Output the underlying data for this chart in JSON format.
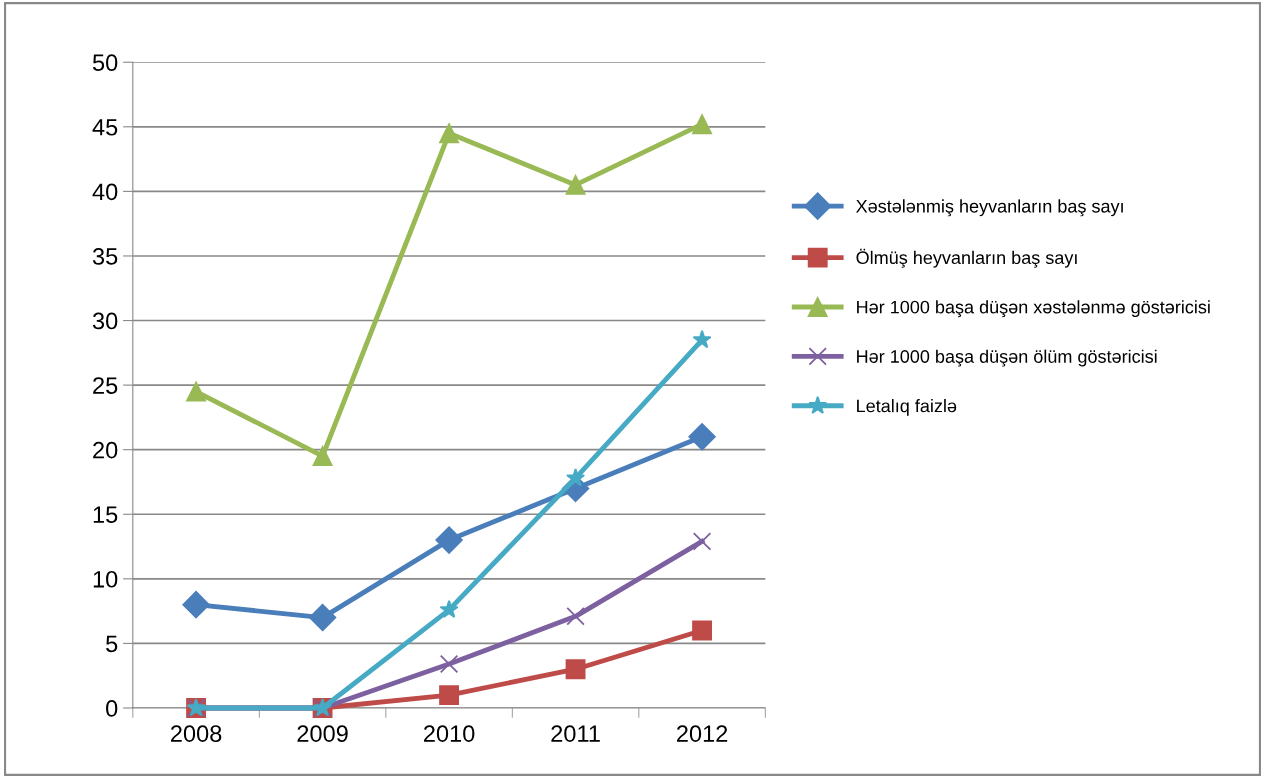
{
  "chart_data": {
    "type": "line",
    "categories": [
      "2008",
      "2009",
      "2010",
      "2011",
      "2012"
    ],
    "series": [
      {
        "name": "Xəstələnmiş heyvanların baş sayı",
        "color": "#4a7ebb",
        "marker": "diamond",
        "values": [
          8,
          7,
          13,
          17,
          21
        ]
      },
      {
        "name": "Ölmüş heyvanların baş sayı",
        "color": "#be4b48",
        "marker": "square",
        "values": [
          0,
          0,
          1,
          3,
          6
        ]
      },
      {
        "name": "Hər 1000 başa düşən xəstələnmə göstəricisi",
        "color": "#98b954",
        "marker": "triangle",
        "values": [
          24.5,
          19.5,
          44.5,
          40.5,
          45.2
        ]
      },
      {
        "name": "Hər 1000 başa düşən ölüm göstəricisi",
        "color": "#7d60a0",
        "marker": "cross",
        "values": [
          0,
          0,
          3.4,
          7.1,
          12.9
        ]
      },
      {
        "name": "Letalıq faizlə",
        "color": "#46aac5",
        "marker": "star",
        "values": [
          0,
          0,
          7.6,
          17.8,
          28.5
        ]
      }
    ],
    "ylim": [
      0,
      50
    ],
    "yticks": [
      0,
      5,
      10,
      15,
      20,
      25,
      30,
      35,
      40,
      45,
      50
    ],
    "grid": "y",
    "legend": "right"
  }
}
